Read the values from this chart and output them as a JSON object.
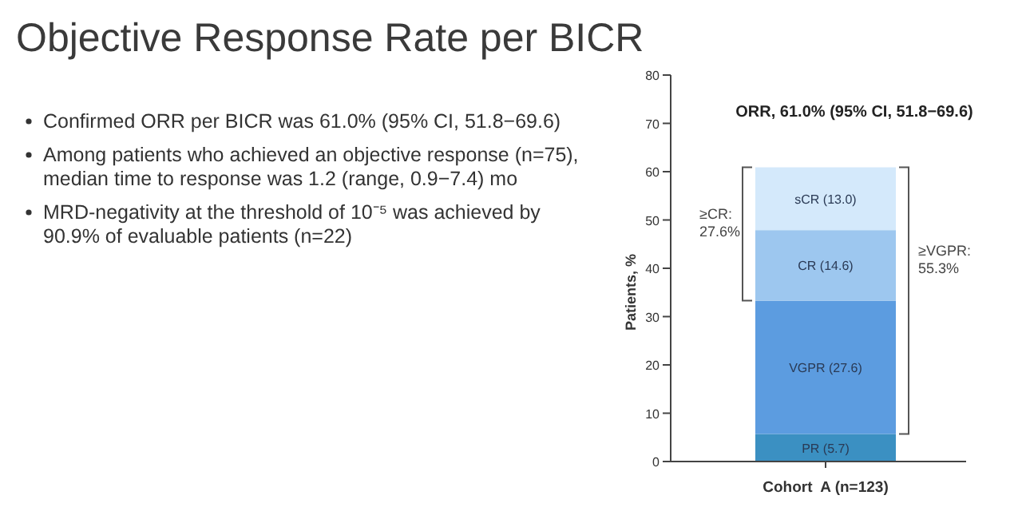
{
  "chart_data": {
    "type": "bar",
    "title": "Objective Response Rate per BICR",
    "ylabel": "Patients, %",
    "categories": [
      "Cohort  A (n=123)"
    ],
    "stacked": true,
    "ylim": [
      0,
      80
    ],
    "yticks": [
      0,
      10,
      20,
      30,
      40,
      50,
      60,
      70,
      80
    ],
    "grid": false,
    "series": [
      {
        "name": "PR",
        "color": "#3b90c2",
        "values": [
          5.7
        ],
        "value_labels": [
          "(5.7)"
        ]
      },
      {
        "name": "VGPR",
        "color": "#5c9ce0",
        "values": [
          27.6
        ],
        "value_labels": [
          "(27.6)"
        ]
      },
      {
        "name": "CR",
        "color": "#9dc7ef",
        "values": [
          14.6
        ],
        "value_labels": [
          "(14.6)"
        ]
      },
      {
        "name": "sCR",
        "color": "#d4e9fb",
        "values": [
          13.0
        ],
        "value_labels": [
          "(13.0)"
        ]
      }
    ],
    "annotations": [
      "Confirmed ORR per BICR was 61.0% (95% CI, 51.8−69.6)",
      "Among patients who achieved an objective response (n=75),\nmedian time to response was 1.2 (range, 0.9−7.4) mo",
      "MRD-negativity at the threshold of 10⁻⁵ was achieved by\n90.9% of evaluable patients (n=22)",
      "ORR, 61.0% (95% CI, 51.8−69.6)",
      "≥CR:\n27.6%",
      "≥VGPR:\n55.3%"
    ]
  }
}
